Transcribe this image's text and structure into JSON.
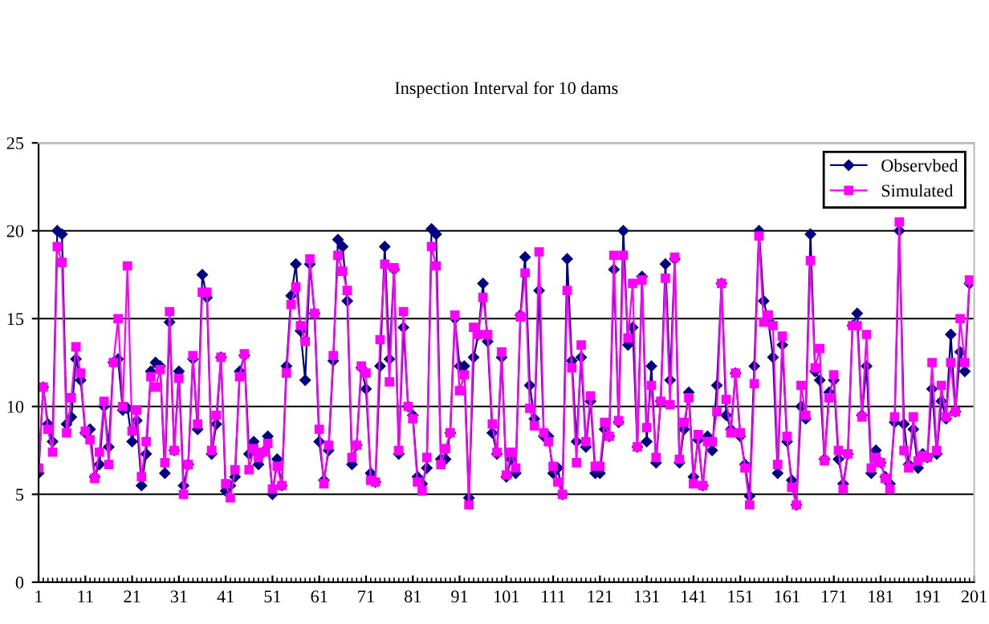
{
  "chart_data": {
    "type": "line",
    "title": "Inspection Interval for 10 dams",
    "x": [
      1,
      2,
      3,
      4,
      5,
      6,
      7,
      8,
      9,
      10,
      11,
      12,
      13,
      14,
      15,
      16,
      17,
      18,
      19,
      20,
      21,
      22,
      23,
      24,
      25,
      26,
      27,
      28,
      29,
      30,
      31,
      32,
      33,
      34,
      35,
      36,
      37,
      38,
      39,
      40,
      41,
      42,
      43,
      44,
      45,
      46,
      47,
      48,
      49,
      50,
      51,
      52,
      53,
      54,
      55,
      56,
      57,
      58,
      59,
      60,
      61,
      62,
      63,
      64,
      65,
      66,
      67,
      68,
      69,
      70,
      71,
      72,
      73,
      74,
      75,
      76,
      77,
      78,
      79,
      80,
      81,
      82,
      83,
      84,
      85,
      86,
      87,
      88,
      89,
      90,
      91,
      92,
      93,
      94,
      95,
      96,
      97,
      98,
      99,
      100,
      101,
      102,
      103,
      104,
      105,
      106,
      107,
      108,
      109,
      110,
      111,
      112,
      113,
      114,
      115,
      116,
      117,
      118,
      119,
      120,
      121,
      122,
      123,
      124,
      125,
      126,
      127,
      128,
      129,
      130,
      131,
      132,
      133,
      134,
      135,
      136,
      137,
      138,
      139,
      140,
      141,
      142,
      143,
      144,
      145,
      146,
      147,
      148,
      149,
      150,
      151,
      152,
      153,
      154,
      155,
      156,
      157,
      158,
      159,
      160,
      161,
      162,
      163,
      164,
      165,
      166,
      167,
      168,
      169,
      170,
      171,
      172,
      173,
      174,
      175,
      176,
      177,
      178,
      179,
      180,
      181,
      182,
      183,
      184,
      185,
      186,
      187,
      188,
      189,
      190,
      191,
      192,
      193,
      194,
      195,
      196,
      197,
      198,
      199,
      200
    ],
    "series": [
      {
        "name": "Observbed",
        "color": "#000080",
        "marker": "diamond",
        "values": [
          6.2,
          11.1,
          9.0,
          8.0,
          20.0,
          19.8,
          9.0,
          9.4,
          12.7,
          11.5,
          8.5,
          8.7,
          6.0,
          6.7,
          10.0,
          7.7,
          12.5,
          12.7,
          9.8,
          9.9,
          8.0,
          9.2,
          5.5,
          7.3,
          12.0,
          12.5,
          12.3,
          6.2,
          14.8,
          7.5,
          12.0,
          5.5,
          6.7,
          12.7,
          8.7,
          17.5,
          16.2,
          7.3,
          9.0,
          12.8,
          5.2,
          5.5,
          6.0,
          12.0,
          12.9,
          7.3,
          8.0,
          6.7,
          7.4,
          8.3,
          5.0,
          7.0,
          5.5,
          12.3,
          16.3,
          18.1,
          14.3,
          11.5,
          18.1,
          15.3,
          8.0,
          5.8,
          7.5,
          12.6,
          19.5,
          19.1,
          16.0,
          6.7,
          7.8,
          12.2,
          11.0,
          6.2,
          5.7,
          12.3,
          19.1,
          12.7,
          17.8,
          7.3,
          14.5,
          10.0,
          9.5,
          6.0,
          5.6,
          6.5,
          20.1,
          19.8,
          7.0,
          7.0,
          8.5,
          15.0,
          12.3,
          12.3,
          4.8,
          12.8,
          14.1,
          17.0,
          13.7,
          8.5,
          7.3,
          12.8,
          6.0,
          7.0,
          6.2,
          15.2,
          18.5,
          11.2,
          9.3,
          16.6,
          8.3,
          8.3,
          6.2,
          6.5,
          5.0,
          18.4,
          12.6,
          8.0,
          12.8,
          7.7,
          10.3,
          6.2,
          6.2,
          8.7,
          8.3,
          17.8,
          9.1,
          20.0,
          13.5,
          14.5,
          7.7,
          17.4,
          8.0,
          12.3,
          6.8,
          10.3,
          18.1,
          11.5,
          18.4,
          6.8,
          8.7,
          10.8,
          6.0,
          8.1,
          5.5,
          8.3,
          7.5,
          11.2,
          17.0,
          9.5,
          8.7,
          11.9,
          8.3,
          6.7,
          4.9,
          12.3,
          20.0,
          16.0,
          14.9,
          12.8,
          6.2,
          13.5,
          8.0,
          5.8,
          4.4,
          10.0,
          9.3,
          19.8,
          12.0,
          11.5,
          7.0,
          10.8,
          11.5,
          7.0,
          5.6,
          7.3,
          14.6,
          15.3,
          9.5,
          12.3,
          6.2,
          7.5,
          6.8,
          6.0,
          5.6,
          9.1,
          20.0,
          9.0,
          6.7,
          8.7,
          6.5,
          7.3,
          7.1,
          11.0,
          7.3,
          10.3,
          9.3,
          14.1,
          9.7,
          13.1,
          12.0,
          17.0
        ]
      },
      {
        "name": "Simulated",
        "color": "#ff00ff",
        "marker": "square",
        "values": [
          6.5,
          11.1,
          8.7,
          7.4,
          19.1,
          18.2,
          8.5,
          10.5,
          13.4,
          11.9,
          8.6,
          8.1,
          5.9,
          7.4,
          10.3,
          6.7,
          12.5,
          15.0,
          10.0,
          18.0,
          8.6,
          9.8,
          6.0,
          8.0,
          11.7,
          11.1,
          12.1,
          6.8,
          15.4,
          7.5,
          11.6,
          5.0,
          6.7,
          12.9,
          9.0,
          16.5,
          16.5,
          7.5,
          9.5,
          12.8,
          5.6,
          4.8,
          6.4,
          11.7,
          13.0,
          6.4,
          7.6,
          7.1,
          7.4,
          7.9,
          5.3,
          6.6,
          5.5,
          11.9,
          15.8,
          16.8,
          14.6,
          13.7,
          18.4,
          15.3,
          8.7,
          5.6,
          7.8,
          12.9,
          18.6,
          17.7,
          16.6,
          7.1,
          7.8,
          12.3,
          11.9,
          5.8,
          5.7,
          13.8,
          18.1,
          11.4,
          17.9,
          7.5,
          15.4,
          10.0,
          9.3,
          5.7,
          5.2,
          7.1,
          19.1,
          18.0,
          6.7,
          7.6,
          8.5,
          15.2,
          10.9,
          11.8,
          4.4,
          14.5,
          14.1,
          16.2,
          14.1,
          9.0,
          7.4,
          13.1,
          6.1,
          7.4,
          6.5,
          15.1,
          17.6,
          9.9,
          8.9,
          18.8,
          8.5,
          8.0,
          6.6,
          5.7,
          5.0,
          16.6,
          12.2,
          6.8,
          13.5,
          8.0,
          10.6,
          6.6,
          6.6,
          9.1,
          8.3,
          18.6,
          9.2,
          18.6,
          13.9,
          17.0,
          7.7,
          17.2,
          8.8,
          11.2,
          7.1,
          10.3,
          17.3,
          10.1,
          18.5,
          7.0,
          9.1,
          10.5,
          5.6,
          8.4,
          5.5,
          8.0,
          8.0,
          9.7,
          17.0,
          10.4,
          8.5,
          11.9,
          8.5,
          6.5,
          4.4,
          11.3,
          19.7,
          14.8,
          15.2,
          14.6,
          6.7,
          14.0,
          8.3,
          5.4,
          4.4,
          11.2,
          9.5,
          18.3,
          12.2,
          13.3,
          6.9,
          10.5,
          11.8,
          7.5,
          5.3,
          7.3,
          14.6,
          14.6,
          9.4,
          14.1,
          6.5,
          7.1,
          6.8,
          5.9,
          5.3,
          9.4,
          20.5,
          7.5,
          6.5,
          9.4,
          6.9,
          7.2,
          7.1,
          12.5,
          7.5,
          11.2,
          9.4,
          12.5,
          9.7,
          15.0,
          12.5,
          17.2
        ]
      }
    ],
    "xlim": [
      1,
      201
    ],
    "xticks": [
      1,
      11,
      21,
      31,
      41,
      51,
      61,
      71,
      81,
      91,
      101,
      111,
      121,
      131,
      141,
      151,
      161,
      171,
      181,
      191,
      201
    ],
    "ylim": [
      0,
      25
    ],
    "yticks": [
      0,
      5,
      10,
      15,
      20,
      25
    ],
    "grid": "y",
    "legend": "top right",
    "line_style": "solid"
  }
}
